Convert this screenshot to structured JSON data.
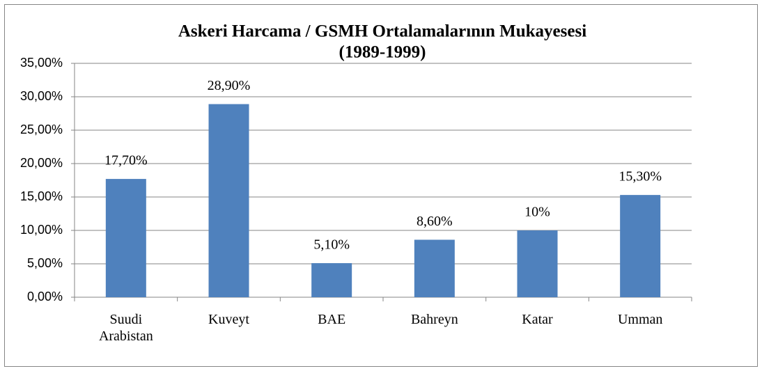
{
  "chart_data": {
    "type": "bar",
    "title": "Askeri Harcama / GSMH Ortalamalarının Mukayesesi",
    "subtitle": "(1989-1999)",
    "categories": [
      "Suudi Arabistan",
      "Kuveyt",
      "BAE",
      "Bahreyn",
      "Katar",
      "Umman"
    ],
    "values": [
      17.7,
      28.9,
      5.1,
      8.6,
      10,
      15.3
    ],
    "value_labels": [
      "17,70%",
      "28,90%",
      "5,10%",
      "8,60%",
      "10%",
      "15,30%"
    ],
    "color": "#4f81bd",
    "ylim": [
      0,
      35
    ],
    "yticks": [
      {
        "value": 0,
        "label": "0,00%"
      },
      {
        "value": 5,
        "label": "5,00%"
      },
      {
        "value": 10,
        "label": "10,00%"
      },
      {
        "value": 15,
        "label": "15,00%"
      },
      {
        "value": 20,
        "label": "20,00%"
      },
      {
        "value": 25,
        "label": "25,00%"
      },
      {
        "value": 30,
        "label": "30,00%"
      },
      {
        "value": 35,
        "label": "35,00%"
      }
    ],
    "grid": true
  }
}
